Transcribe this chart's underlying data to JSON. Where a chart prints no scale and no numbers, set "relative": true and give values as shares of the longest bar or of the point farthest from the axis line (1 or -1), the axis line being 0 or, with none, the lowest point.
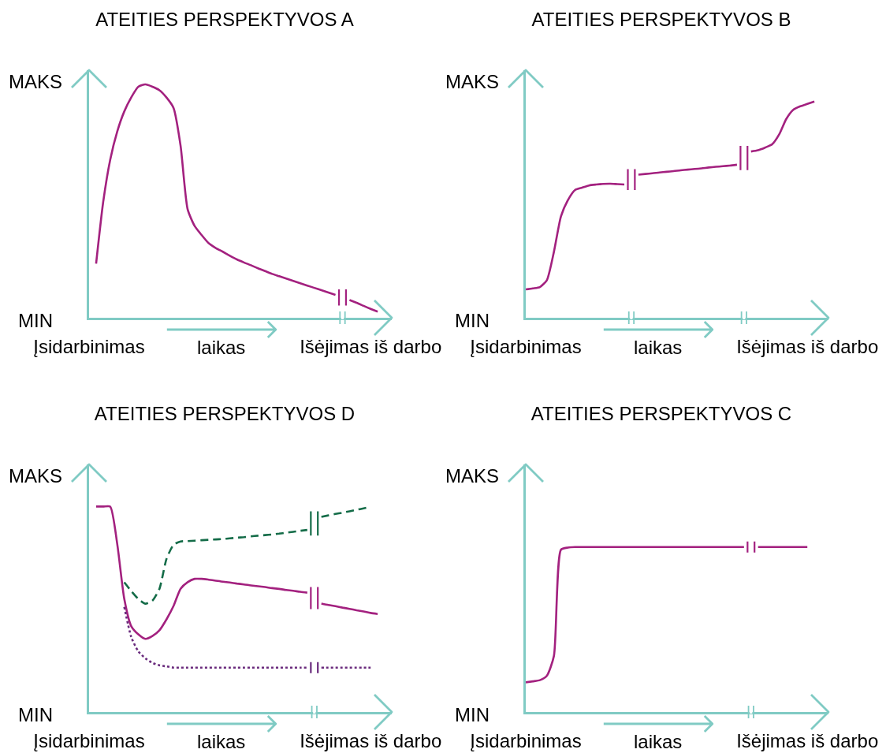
{
  "chart_data": [
    {
      "type": "line",
      "title": "ATEITIES PERSPEKTYVOS A",
      "xlabel": "laikas",
      "relative": true,
      "annotations": [
        "MAKS",
        "MIN"
      ],
      "categories": [
        "Įsidarbinimas",
        null,
        null,
        null,
        null,
        null,
        null,
        null,
        null,
        null,
        null,
        null,
        null,
        null,
        null,
        null,
        null,
        null,
        null,
        null,
        null,
        null,
        null,
        null,
        null,
        null,
        null,
        null,
        null,
        null,
        null,
        null,
        null,
        null,
        null,
        null,
        null,
        null,
        null,
        null,
        "Išėjimas iš darbo",
        null,
        null
      ],
      "series": [
        {
          "color": "#a3217f",
          "values": [
            null,
            0.232,
            0.495,
            0.677,
            0.798,
            0.884,
            0.945,
            0.99,
            1,
            0.99,
            0.975,
            0.944,
            0.899,
            0.737,
            0.465,
            0.393,
            0.354,
            0.319,
            0.299,
            0.283,
            0.266,
            0.25,
            0.237,
            0.225,
            0.212,
            0.2,
            0.188,
            0.178,
            0.168,
            0.158,
            0.148,
            0.138,
            0.128,
            0.118,
            0.108,
            0.098,
            null,
            0.076,
            0.064,
            0.051,
            0.038,
            0.026,
            null
          ]
        }
      ]
    },
    {
      "type": "line",
      "title": "ATEITIES PERSPEKTYVOS B",
      "xlabel": "laikas",
      "relative": true,
      "annotations": [
        "MAKS",
        "MIN"
      ],
      "categories": [
        "Įsidarbinimas",
        null,
        null,
        null,
        null,
        null,
        null,
        null,
        null,
        null,
        null,
        null,
        null,
        null,
        null,
        null,
        null,
        null,
        null,
        null,
        null,
        null,
        null,
        null,
        null,
        null,
        null,
        null,
        null,
        null,
        null,
        null,
        null,
        null,
        null,
        null,
        null,
        null,
        null,
        null,
        "Išėjimas iš darbo",
        null,
        null
      ],
      "series": [
        {
          "color": "#a3217f",
          "values": [
            0.131,
            0.136,
            0.142,
            0.174,
            0.305,
            0.469,
            0.545,
            0.591,
            0.602,
            0.612,
            0.616,
            0.619,
            0.62,
            0.618,
            0.616,
            null,
            0.662,
            0.665,
            0.668,
            0.672,
            0.675,
            0.678,
            0.682,
            0.685,
            0.688,
            0.691,
            0.695,
            0.698,
            0.701,
            0.704,
            0.708,
            null,
            0.769,
            0.775,
            0.787,
            0.802,
            0.848,
            0.919,
            0.962,
            0.978,
            0.989,
            1,
            null
          ]
        }
      ]
    },
    {
      "type": "line",
      "title": "ATEITIES PERSPEKTYVOS D",
      "xlabel": "laikas",
      "relative": true,
      "annotations": [
        "MAKS",
        "MIN"
      ],
      "categories": [
        "Įsidarbinimas",
        null,
        null,
        null,
        null,
        null,
        null,
        null,
        null,
        null,
        null,
        null,
        null,
        null,
        null,
        null,
        null,
        null,
        null,
        null,
        null,
        null,
        null,
        null,
        null,
        null,
        null,
        null,
        null,
        null,
        null,
        null,
        null,
        null,
        null,
        null,
        null,
        null,
        null,
        null,
        "Išėjimas iš darbo",
        null,
        null
      ],
      "series": [
        {
          "color": "#a3217f",
          "line_style": "solid",
          "values": [
            null,
            1,
            1,
            1,
            0.818,
            0.551,
            0.417,
            0.378,
            0.356,
            0.37,
            0.398,
            0.451,
            0.516,
            0.6,
            0.632,
            0.648,
            0.648,
            0.644,
            0.639,
            0.634,
            0.63,
            0.625,
            0.621,
            0.616,
            0.612,
            0.608,
            0.603,
            0.599,
            0.594,
            0.59,
            0.585,
            0.581,
            null,
            0.528,
            0.521,
            0.515,
            0.508,
            0.502,
            0.495,
            0.489,
            0.482,
            0.477,
            null
          ]
        },
        {
          "color": "#146c48",
          "line_style": "dashed",
          "values": [
            null,
            null,
            null,
            null,
            null,
            0.631,
            0.588,
            0.55,
            0.527,
            0.542,
            0.6,
            0.745,
            0.814,
            0.83,
            0.832,
            0.834,
            0.836,
            0.838,
            0.84,
            0.842,
            0.845,
            0.848,
            0.851,
            0.855,
            0.858,
            0.861,
            0.864,
            0.868,
            0.873,
            0.877,
            0.882,
            0.886,
            null,
            0.95,
            0.957,
            0.964,
            0.97,
            0.977,
            0.984,
            0.991,
            0.998,
            null,
            null
          ]
        },
        {
          "color": "#6a2b7d",
          "line_style": "dotted",
          "values": [
            null,
            null,
            null,
            null,
            null,
            0.511,
            0.364,
            0.295,
            0.261,
            0.239,
            0.227,
            0.222,
            0.216,
            0.216,
            0.216,
            0.216,
            0.216,
            0.216,
            0.216,
            0.216,
            0.216,
            0.216,
            0.216,
            0.216,
            0.216,
            0.216,
            0.216,
            0.216,
            0.216,
            0.216,
            0.216,
            0.216,
            null,
            0.216,
            0.216,
            0.216,
            0.216,
            0.216,
            0.216,
            0.216,
            0.216,
            null,
            null
          ]
        }
      ]
    },
    {
      "type": "line",
      "title": "ATEITIES PERSPEKTYVOS C",
      "xlabel": "laikas",
      "relative": true,
      "annotations": [
        "MAKS",
        "MIN"
      ],
      "categories": [
        "Įsidarbinimas",
        null,
        null,
        null,
        null,
        null,
        null,
        null,
        null,
        null,
        null,
        null,
        null,
        null,
        null,
        null,
        null,
        null,
        null,
        null,
        null,
        null,
        null,
        null,
        null,
        null,
        null,
        null,
        null,
        null,
        null,
        null,
        null,
        null,
        null,
        null,
        null,
        null,
        null,
        null,
        "Išėjimas iš darbo",
        null,
        null
      ],
      "series": [
        {
          "color": "#a3217f",
          "values": [
            0.18,
            0.186,
            0.193,
            0.22,
            0.34,
            0.984,
            0.997,
            1,
            1,
            1,
            1,
            1,
            1,
            1,
            1,
            1,
            1,
            1,
            1,
            1,
            1,
            1,
            1,
            1,
            1,
            1,
            1,
            1,
            1,
            1,
            1,
            1,
            null,
            1,
            1,
            1,
            1,
            1,
            1,
            1,
            1,
            null,
            null
          ]
        }
      ]
    }
  ]
}
